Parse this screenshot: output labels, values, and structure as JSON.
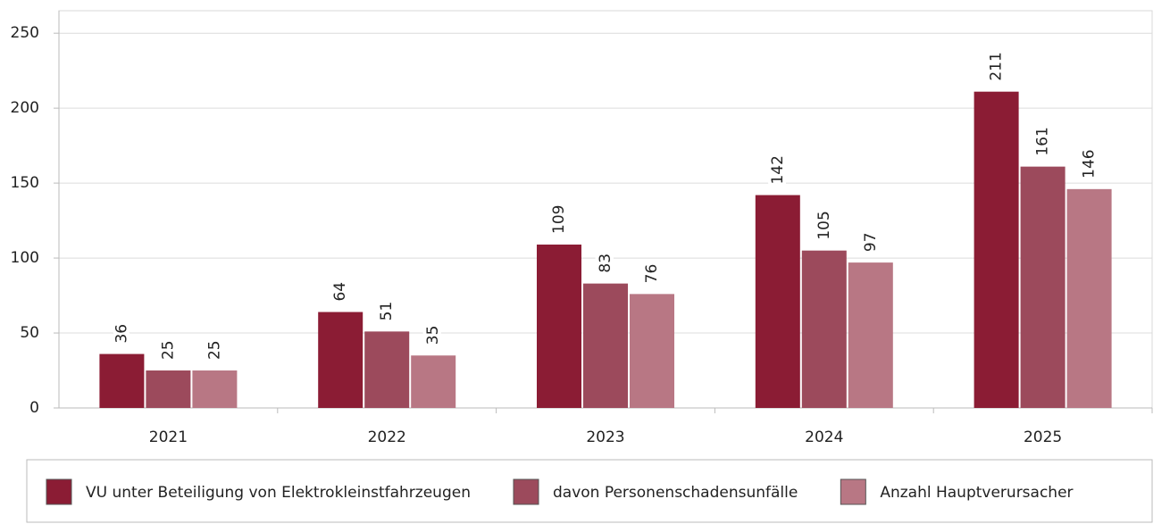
{
  "chart_data": {
    "type": "bar",
    "categories": [
      "2021",
      "2022",
      "2023",
      "2024",
      "2025"
    ],
    "series": [
      {
        "name": "VU unter Beteiligung von Elektrokleinstfahrzeugen",
        "color": "#8b1c34",
        "values": [
          36,
          64,
          109,
          142,
          211
        ]
      },
      {
        "name": "davon Personenschadensunfälle",
        "color": "#9c4a5c",
        "values": [
          25,
          51,
          83,
          105,
          161
        ]
      },
      {
        "name": "Anzahl Hauptverursacher",
        "color": "#b87784",
        "values": [
          25,
          35,
          76,
          97,
          146
        ]
      }
    ],
    "ylim": [
      0,
      265
    ],
    "yticks": [
      0,
      50,
      100,
      150,
      200,
      250
    ],
    "grid": true,
    "legend": "bottom"
  }
}
